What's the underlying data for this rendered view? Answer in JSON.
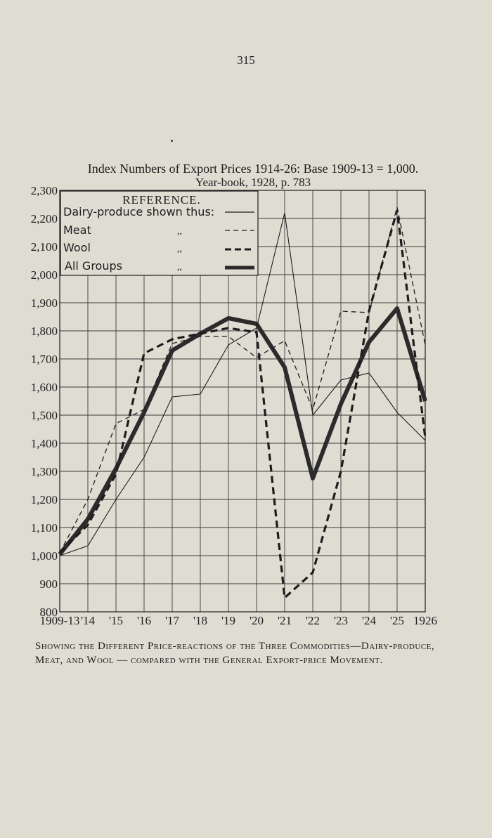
{
  "page": {
    "number": "315"
  },
  "chart_data": {
    "type": "line",
    "title": "Index Numbers of Export Prices 1914-26: Base 1909-13 = 1,000.",
    "subtitle": "Year-book, 1928, p. 783",
    "x_labels": [
      "1909-13",
      "'14",
      "'15",
      "'16",
      "'17",
      "'18",
      "'19",
      "'20",
      "'21",
      "'22",
      "'23",
      "'24",
      "'25",
      "1926"
    ],
    "y_ticks": [
      800,
      900,
      1000,
      1100,
      1200,
      1300,
      1400,
      1500,
      1600,
      1700,
      1800,
      1900,
      2000,
      2100,
      2200,
      2300
    ],
    "y_tick_labels": [
      "800",
      "900",
      "1,000",
      "1,100",
      "1,200",
      "1,300",
      "1,400",
      "1,500",
      "1,600",
      "1,700",
      "1,800",
      "1,900",
      "2,000",
      "2,100",
      "2,200",
      "2,300"
    ],
    "ylim": [
      800,
      2300
    ],
    "grid": true,
    "legend": {
      "heading": "REFERENCE.",
      "placement": "top-left",
      "entries": [
        {
          "label": "Dairy-produce shown thus:",
          "ditto": ""
        },
        {
          "label": "Meat",
          "ditto": ",,"
        },
        {
          "label": "Wool",
          "ditto": ",,"
        },
        {
          "label": "All Groups",
          "ditto": ",,"
        }
      ]
    },
    "series": [
      {
        "name": "Dairy-produce",
        "style": "thin-solid",
        "values": [
          1000,
          1035,
          1200,
          1350,
          1565,
          1575,
          1750,
          1810,
          2220,
          1500,
          1625,
          1650,
          1510,
          1410
        ]
      },
      {
        "name": "Meat",
        "style": "thin-dashed",
        "values": [
          1010,
          1200,
          1470,
          1520,
          1755,
          1780,
          1780,
          1705,
          1765,
          1520,
          1870,
          1865,
          2240,
          1750
        ]
      },
      {
        "name": "Wool",
        "style": "thick-dashed",
        "values": [
          1010,
          1110,
          1290,
          1720,
          1770,
          1790,
          1810,
          1795,
          850,
          940,
          1300,
          1870,
          2230,
          1420
        ]
      },
      {
        "name": "All Groups",
        "style": "heavy-solid",
        "values": [
          1005,
          1130,
          1310,
          1510,
          1730,
          1790,
          1845,
          1825,
          1670,
          1275,
          1540,
          1760,
          1880,
          1550
        ]
      }
    ]
  },
  "caption": "Showing the Different Price-reactions of the Three Commodities—Dairy-produce, Meat, and Wool — compared with the General Export-price Movement.",
  "colors": {
    "paper": "#dfdcd2",
    "ink": "#1d1d1d",
    "grid": "#3a3a3a"
  }
}
